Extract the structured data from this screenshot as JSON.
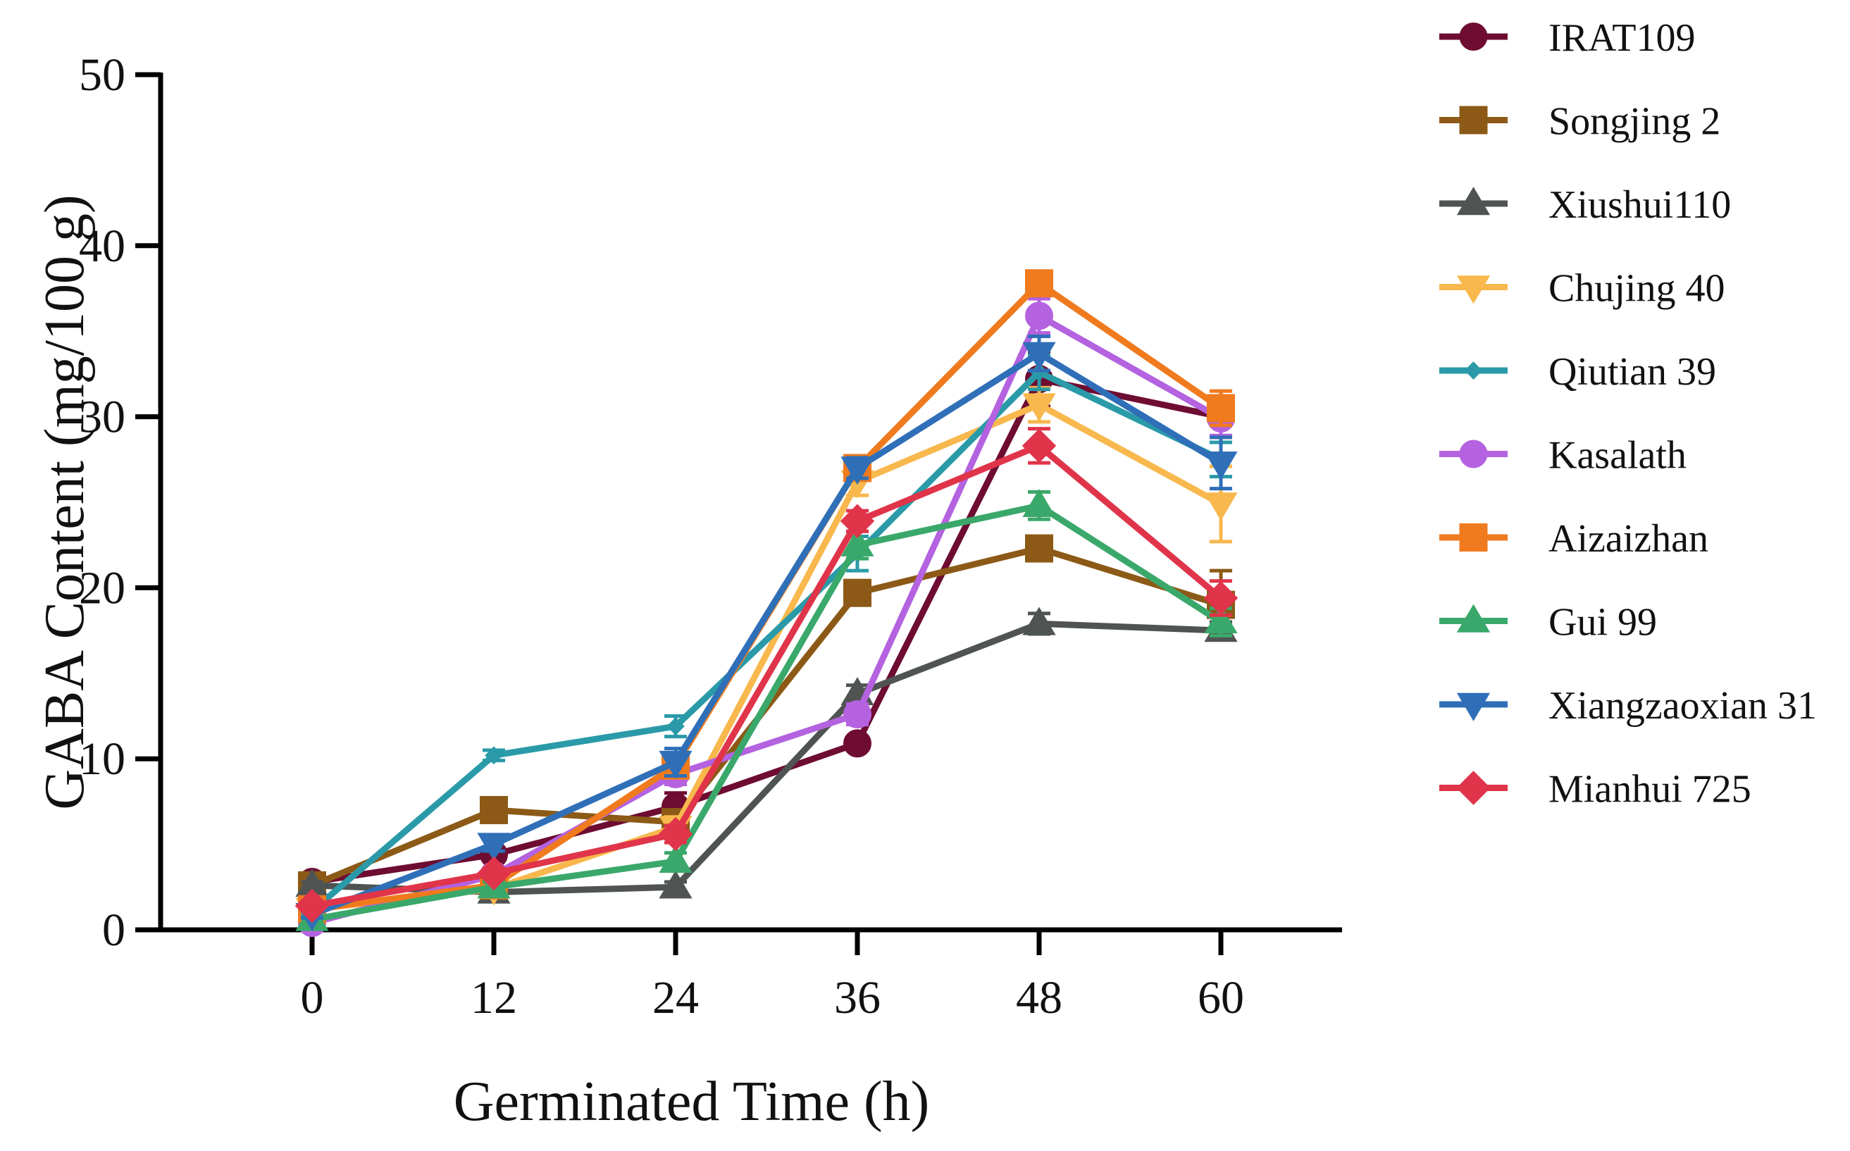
{
  "chart_data": {
    "type": "line",
    "title": "",
    "xlabel": "Germinated Time (h)",
    "ylabel": "GABA Content (mg/100 g)",
    "x": [
      0,
      12,
      24,
      36,
      48,
      60
    ],
    "x_tick_labels": [
      "0",
      "12",
      "24",
      "36",
      "48",
      "60"
    ],
    "ylim": [
      0,
      50
    ],
    "y_ticks": [
      0,
      10,
      20,
      30,
      40,
      50
    ],
    "y_tick_labels": [
      "0",
      "10",
      "20",
      "30",
      "40",
      "50"
    ],
    "grid": false,
    "legend_position": "right",
    "error_bars": true,
    "series": [
      {
        "name": "IRAT109",
        "color": "#6e0c32",
        "marker": "circle",
        "values": [
          2.8,
          4.4,
          7.2,
          10.9,
          32.2,
          30.0
        ],
        "errors": [
          0.3,
          0.4,
          0.8,
          0.4,
          1.6,
          1.2
        ]
      },
      {
        "name": "Songjing 2",
        "color": "#8c5a16",
        "marker": "square",
        "values": [
          2.6,
          7.0,
          6.3,
          19.7,
          22.3,
          19.0
        ],
        "errors": [
          0.3,
          0.6,
          0.6,
          0.6,
          0.6,
          2.0
        ]
      },
      {
        "name": "Xiushui110",
        "color": "#4f5452",
        "marker": "triangle-up",
        "values": [
          2.6,
          2.2,
          2.5,
          13.8,
          17.9,
          17.5
        ],
        "errors": [
          0.2,
          0.3,
          0.3,
          0.5,
          0.6,
          0.5
        ]
      },
      {
        "name": "Chujing 40",
        "color": "#f8b84d",
        "marker": "triangle-down",
        "values": [
          1.2,
          2.4,
          6.0,
          26.2,
          30.7,
          24.9
        ],
        "errors": [
          0.2,
          0.3,
          0.6,
          0.8,
          1.0,
          2.2
        ]
      },
      {
        "name": "Qiutian 39",
        "color": "#2a9aa8",
        "marker": "diamond-small",
        "values": [
          1.1,
          10.2,
          11.9,
          22.0,
          32.6,
          27.5
        ],
        "errors": [
          0.2,
          0.3,
          0.6,
          1.0,
          1.0,
          1.0
        ]
      },
      {
        "name": "Kasalath",
        "color": "#b462e0",
        "marker": "circle",
        "values": [
          0.4,
          3.2,
          9.1,
          12.6,
          35.9,
          29.9
        ],
        "errors": [
          0.2,
          0.3,
          0.6,
          0.6,
          1.0,
          1.0
        ]
      },
      {
        "name": "Aizaizhan",
        "color": "#f07a1e",
        "marker": "square",
        "values": [
          1.2,
          2.6,
          9.6,
          27.0,
          37.8,
          30.5
        ],
        "errors": [
          0.2,
          0.3,
          0.6,
          0.6,
          0.6,
          1.0
        ]
      },
      {
        "name": "Gui 99",
        "color": "#3aa86a",
        "marker": "triangle-up",
        "values": [
          0.6,
          2.5,
          4.0,
          22.5,
          24.8,
          18.0
        ],
        "errors": [
          0.2,
          0.3,
          0.5,
          0.8,
          0.8,
          0.8
        ]
      },
      {
        "name": "Xiangzaoxian 31",
        "color": "#2f6fb8",
        "marker": "triangle-down",
        "values": [
          0.9,
          5.0,
          9.8,
          27.0,
          33.7,
          27.3
        ],
        "errors": [
          0.2,
          0.4,
          0.8,
          0.6,
          1.0,
          1.5
        ]
      },
      {
        "name": "Mianhui 725",
        "color": "#e0344a",
        "marker": "diamond",
        "values": [
          1.4,
          3.3,
          5.6,
          23.9,
          28.3,
          19.4
        ],
        "errors": [
          0.2,
          0.3,
          0.5,
          0.6,
          1.0,
          1.0
        ]
      }
    ]
  }
}
